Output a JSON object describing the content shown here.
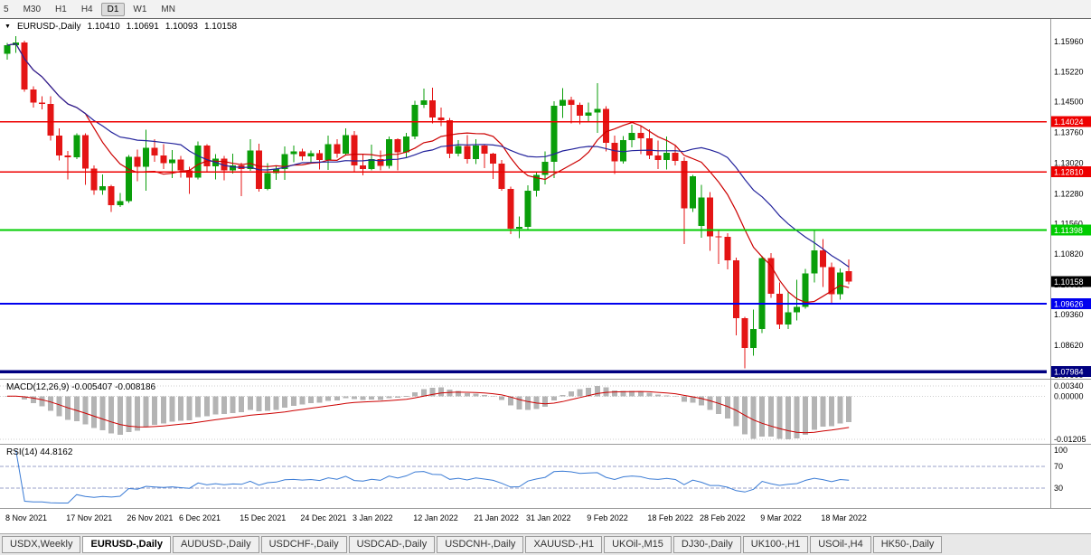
{
  "toolbar": {
    "timeframes": [
      "5",
      "M30",
      "H1",
      "H4",
      "D1",
      "W1",
      "MN"
    ],
    "active_timeframe": "D1"
  },
  "chart": {
    "title": {
      "marker": "▼",
      "symbol": "EURUSD-,Daily",
      "open": "1.10410",
      "high": "1.10691",
      "low": "1.10093",
      "close": "1.10158"
    },
    "price_axis_labels": [
      "1.15960",
      "1.15220",
      "1.14500",
      "1.13760",
      "1.13020",
      "1.12280",
      "1.11560",
      "1.10820",
      "1.10080",
      "1.09360",
      "1.08620",
      "1.07900"
    ],
    "hlines": [
      {
        "price": 1.14024,
        "label": "1.14024",
        "color": "#ee0000",
        "width": 1.5
      },
      {
        "price": 1.1281,
        "label": "1.12810",
        "color": "#ee0000",
        "width": 1.5
      },
      {
        "price": 1.11398,
        "label": "1.11398",
        "color": "#00cc00",
        "width": 2
      },
      {
        "price": 1.09626,
        "label": "1.09626",
        "color": "#0000ee",
        "width": 2
      },
      {
        "price": 1.07984,
        "label": "1.07984",
        "color": "#000080",
        "width": 3.5
      }
    ],
    "current_price_tag": {
      "value": 1.10158,
      "label": "1.10158",
      "bg": "#000000"
    }
  },
  "indicators": {
    "macd": {
      "label": "MACD(12,26,9) -0.005407 -0.008186",
      "axis_labels": [
        "0.00340",
        "0.00000",
        "-0.01205"
      ],
      "histogram_color": "#b4b4b4",
      "signal_color": "#cc0000"
    },
    "rsi": {
      "label": "RSI(14) 44.8162",
      "axis_labels": [
        "100",
        "70",
        "30"
      ],
      "levels": [
        70,
        30
      ],
      "line_color": "#3a7bd5"
    }
  },
  "chart_data": {
    "type": "candlestick",
    "symbol": "EURUSD-",
    "timeframe": "Daily",
    "ylim": [
      1.0781,
      1.16525
    ],
    "moving_averages": [
      {
        "period": 10,
        "color": "#cc0000"
      },
      {
        "period": 21,
        "color": "#24249c"
      }
    ],
    "macd_params": {
      "fast": 12,
      "slow": 26,
      "signal": 9
    },
    "rsi_period": 14,
    "date_labels": [
      {
        "index": 0,
        "label": "8 Nov 2021"
      },
      {
        "index": 7,
        "label": "17 Nov 2021"
      },
      {
        "index": 14,
        "label": "26 Nov 2021"
      },
      {
        "index": 20,
        "label": "6 Dec 2021"
      },
      {
        "index": 27,
        "label": "15 Dec 2021"
      },
      {
        "index": 34,
        "label": "24 Dec 2021"
      },
      {
        "index": 40,
        "label": "3 Jan 2022"
      },
      {
        "index": 47,
        "label": "12 Jan 2022"
      },
      {
        "index": 54,
        "label": "21 Jan 2022"
      },
      {
        "index": 60,
        "label": "31 Jan 2022"
      },
      {
        "index": 67,
        "label": "9 Feb 2022"
      },
      {
        "index": 74,
        "label": "18 Feb 2022"
      },
      {
        "index": 80,
        "label": "28 Feb 2022"
      },
      {
        "index": 87,
        "label": "9 Mar 2022"
      },
      {
        "index": 94,
        "label": "18 Mar 2022"
      }
    ],
    "ohlc": [
      [
        1.1566,
        1.1592,
        1.1552,
        1.1587
      ],
      [
        1.1587,
        1.1609,
        1.1568,
        1.1594
      ],
      [
        1.1594,
        1.1598,
        1.1475,
        1.148
      ],
      [
        1.148,
        1.1488,
        1.1436,
        1.1448
      ],
      [
        1.1448,
        1.1464,
        1.1432,
        1.1445
      ],
      [
        1.1445,
        1.1464,
        1.1357,
        1.1369
      ],
      [
        1.1369,
        1.1386,
        1.1309,
        1.132
      ],
      [
        1.132,
        1.1331,
        1.1263,
        1.1316
      ],
      [
        1.1316,
        1.1374,
        1.1312,
        1.137
      ],
      [
        1.137,
        1.1374,
        1.125,
        1.1289
      ],
      [
        1.1289,
        1.1297,
        1.1226,
        1.1236
      ],
      [
        1.1236,
        1.1275,
        1.1226,
        1.1246
      ],
      [
        1.1246,
        1.125,
        1.1184,
        1.12
      ],
      [
        1.12,
        1.123,
        1.1196,
        1.121
      ],
      [
        1.121,
        1.1322,
        1.1206,
        1.1317
      ],
      [
        1.1317,
        1.1335,
        1.1258,
        1.1293
      ],
      [
        1.1293,
        1.1383,
        1.1235,
        1.1339
      ],
      [
        1.1339,
        1.136,
        1.1305,
        1.132
      ],
      [
        1.132,
        1.1348,
        1.1288,
        1.1302
      ],
      [
        1.1302,
        1.1334,
        1.1266,
        1.1311
      ],
      [
        1.1311,
        1.1319,
        1.1267,
        1.1285
      ],
      [
        1.1285,
        1.1293,
        1.1228,
        1.1267
      ],
      [
        1.1267,
        1.1354,
        1.1263,
        1.1344
      ],
      [
        1.1344,
        1.1348,
        1.128,
        1.1294
      ],
      [
        1.1294,
        1.1324,
        1.1263,
        1.1313
      ],
      [
        1.1313,
        1.1319,
        1.126,
        1.1284
      ],
      [
        1.1284,
        1.1325,
        1.1277,
        1.1296
      ],
      [
        1.1296,
        1.1303,
        1.1222,
        1.1288
      ],
      [
        1.1288,
        1.136,
        1.1283,
        1.1332
      ],
      [
        1.1332,
        1.1349,
        1.1233,
        1.124
      ],
      [
        1.124,
        1.1302,
        1.1236,
        1.1278
      ],
      [
        1.1278,
        1.1295,
        1.1262,
        1.1288
      ],
      [
        1.1288,
        1.1342,
        1.1261,
        1.1324
      ],
      [
        1.1324,
        1.1344,
        1.1304,
        1.133
      ],
      [
        1.133,
        1.1337,
        1.1308,
        1.1318
      ],
      [
        1.1318,
        1.1333,
        1.1304,
        1.1326
      ],
      [
        1.1326,
        1.1334,
        1.1287,
        1.131
      ],
      [
        1.131,
        1.1369,
        1.1286,
        1.1348
      ],
      [
        1.1348,
        1.136,
        1.1315,
        1.1325
      ],
      [
        1.1325,
        1.1386,
        1.1321,
        1.137
      ],
      [
        1.137,
        1.1379,
        1.1279,
        1.1297
      ],
      [
        1.1297,
        1.1323,
        1.1272,
        1.1288
      ],
      [
        1.1288,
        1.1347,
        1.1284,
        1.1312
      ],
      [
        1.1312,
        1.1332,
        1.1285,
        1.1295
      ],
      [
        1.1295,
        1.1366,
        1.1289,
        1.136
      ],
      [
        1.136,
        1.1362,
        1.1284,
        1.1328
      ],
      [
        1.1328,
        1.1375,
        1.1314,
        1.1366
      ],
      [
        1.1366,
        1.1453,
        1.136,
        1.1443
      ],
      [
        1.1443,
        1.1482,
        1.1435,
        1.1454
      ],
      [
        1.1454,
        1.1484,
        1.1398,
        1.1412
      ],
      [
        1.1412,
        1.1436,
        1.1392,
        1.1406
      ],
      [
        1.1406,
        1.1411,
        1.1314,
        1.1325
      ],
      [
        1.1325,
        1.1358,
        1.1318,
        1.1343
      ],
      [
        1.1343,
        1.137,
        1.1301,
        1.1312
      ],
      [
        1.1312,
        1.136,
        1.13,
        1.1344
      ],
      [
        1.1344,
        1.1348,
        1.129,
        1.1325
      ],
      [
        1.1325,
        1.1327,
        1.1264,
        1.1301
      ],
      [
        1.1301,
        1.131,
        1.1235,
        1.124
      ],
      [
        1.124,
        1.1245,
        1.1131,
        1.1144
      ],
      [
        1.1144,
        1.1173,
        1.1121,
        1.1148
      ],
      [
        1.1148,
        1.1248,
        1.1141,
        1.1235
      ],
      [
        1.1235,
        1.1279,
        1.1221,
        1.1273
      ],
      [
        1.1273,
        1.133,
        1.1251,
        1.1305
      ],
      [
        1.1305,
        1.1452,
        1.1266,
        1.1441
      ],
      [
        1.1441,
        1.1483,
        1.1411,
        1.1455
      ],
      [
        1.1455,
        1.1463,
        1.1398,
        1.1443
      ],
      [
        1.1443,
        1.1448,
        1.1396,
        1.1417
      ],
      [
        1.1417,
        1.1448,
        1.1403,
        1.1424
      ],
      [
        1.1424,
        1.1495,
        1.1375,
        1.1433
      ],
      [
        1.1433,
        1.144,
        1.133,
        1.1351
      ],
      [
        1.1351,
        1.1369,
        1.1276,
        1.1306
      ],
      [
        1.1306,
        1.1368,
        1.1301,
        1.1358
      ],
      [
        1.1358,
        1.1395,
        1.134,
        1.1375
      ],
      [
        1.1375,
        1.1392,
        1.1324,
        1.1362
      ],
      [
        1.1362,
        1.1384,
        1.1312,
        1.1321
      ],
      [
        1.1321,
        1.1356,
        1.1288,
        1.131
      ],
      [
        1.131,
        1.1366,
        1.1287,
        1.1327
      ],
      [
        1.1327,
        1.1344,
        1.1297,
        1.1307
      ],
      [
        1.1307,
        1.1316,
        1.1106,
        1.1193
      ],
      [
        1.1193,
        1.1274,
        1.1184,
        1.127
      ],
      [
        1.115,
        1.125,
        1.1122,
        1.1219
      ],
      [
        1.1219,
        1.1232,
        1.109,
        1.1125
      ],
      [
        1.1125,
        1.1139,
        1.1058,
        1.1124
      ],
      [
        1.1124,
        1.1133,
        1.1045,
        1.1067
      ],
      [
        1.1067,
        1.1074,
        1.0886,
        1.0927
      ],
      [
        1.0927,
        1.0931,
        1.0806,
        1.0855
      ],
      [
        1.0855,
        1.0948,
        1.0837,
        1.0901
      ],
      [
        1.0901,
        1.1078,
        1.0891,
        1.1073
      ],
      [
        1.1073,
        1.1085,
        1.0977,
        1.0986
      ],
      [
        1.0986,
        1.1014,
        1.0901,
        1.0912
      ],
      [
        1.0912,
        1.099,
        1.0901,
        1.0941
      ],
      [
        1.0941,
        1.102,
        1.0922,
        1.0955
      ],
      [
        1.0955,
        1.1046,
        1.095,
        1.1036
      ],
      [
        1.1036,
        1.1139,
        1.1014,
        1.1091
      ],
      [
        1.1091,
        1.1119,
        1.1003,
        1.1051
      ],
      [
        1.1051,
        1.1062,
        1.0961,
        1.0985
      ],
      [
        1.0985,
        1.1048,
        1.0972,
        1.1038
      ],
      [
        1.1041,
        1.10691,
        1.10093,
        1.10158
      ]
    ],
    "candle_colors": {
      "up": "#0a9e0a",
      "down": "#e41515"
    }
  },
  "tabs": [
    {
      "label": "USDX,Weekly",
      "active": false
    },
    {
      "label": "EURUSD-,Daily",
      "active": true
    },
    {
      "label": "AUDUSD-,Daily",
      "active": false
    },
    {
      "label": "USDCHF-,Daily",
      "active": false
    },
    {
      "label": "USDCAD-,Daily",
      "active": false
    },
    {
      "label": "USDCNH-,Daily",
      "active": false
    },
    {
      "label": "XAUUSD-,H1",
      "active": false
    },
    {
      "label": "UKOil-,M15",
      "active": false
    },
    {
      "label": "DJ30-,Daily",
      "active": false
    },
    {
      "label": "UK100-,H1",
      "active": false
    },
    {
      "label": "USOil-,H4",
      "active": false
    },
    {
      "label": "HK50-,Daily",
      "active": false
    }
  ]
}
